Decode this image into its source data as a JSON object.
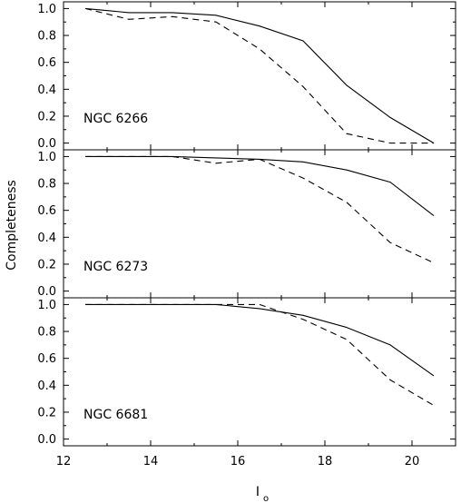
{
  "chart_data": {
    "type": "line",
    "ylabel": "Completeness",
    "xlabel": "I",
    "xlabel_subscript": "o",
    "xlim": [
      12,
      21
    ],
    "x_ticks": [
      "12",
      "14",
      "16",
      "18",
      "20"
    ],
    "x_tick_values": [
      12,
      14,
      16,
      18,
      20
    ],
    "ylim": [
      -0.05,
      1.05
    ],
    "y_ticks": [
      "0.0",
      "0.2",
      "0.4",
      "0.6",
      "0.8",
      "1.0"
    ],
    "y_tick_values": [
      0.0,
      0.2,
      0.4,
      0.6,
      0.8,
      1.0
    ],
    "panels": [
      {
        "label": "NGC 6266",
        "series": [
          {
            "style": "solid",
            "x": [
              12.5,
              13.5,
              14.5,
              15.5,
              16.5,
              17.5,
              18.5,
              19.5,
              20.5
            ],
            "y": [
              1.0,
              0.97,
              0.97,
              0.95,
              0.87,
              0.76,
              0.43,
              0.19,
              0.0
            ]
          },
          {
            "style": "dashed",
            "x": [
              12.5,
              13.5,
              14.5,
              15.5,
              16.5,
              17.5,
              18.5,
              19.5,
              20.5
            ],
            "y": [
              1.0,
              0.92,
              0.94,
              0.9,
              0.7,
              0.42,
              0.07,
              0.0,
              0.0
            ]
          }
        ]
      },
      {
        "label": "NGC 6273",
        "series": [
          {
            "style": "solid",
            "x": [
              12.5,
              13.5,
              14.5,
              15.5,
              16.5,
              17.5,
              18.5,
              19.5,
              20.5
            ],
            "y": [
              1.0,
              1.0,
              1.0,
              0.99,
              0.98,
              0.96,
              0.9,
              0.81,
              0.56
            ]
          },
          {
            "style": "dashed",
            "x": [
              12.5,
              13.5,
              14.5,
              15.5,
              16.5,
              17.5,
              18.5,
              19.5,
              20.5
            ],
            "y": [
              1.0,
              1.0,
              1.0,
              0.95,
              0.98,
              0.84,
              0.66,
              0.36,
              0.21
            ]
          }
        ]
      },
      {
        "label": "NGC 6681",
        "series": [
          {
            "style": "solid",
            "x": [
              12.5,
              13.5,
              14.5,
              15.5,
              16.5,
              17.5,
              18.5,
              19.5,
              20.5
            ],
            "y": [
              1.0,
              1.0,
              1.0,
              1.0,
              0.97,
              0.92,
              0.83,
              0.7,
              0.47
            ]
          },
          {
            "style": "dashed",
            "x": [
              12.5,
              13.5,
              14.5,
              15.5,
              16.5,
              17.5,
              18.5,
              19.5,
              20.5
            ],
            "y": [
              1.0,
              1.0,
              1.0,
              1.0,
              1.0,
              0.89,
              0.74,
              0.44,
              0.25
            ]
          }
        ]
      }
    ]
  }
}
